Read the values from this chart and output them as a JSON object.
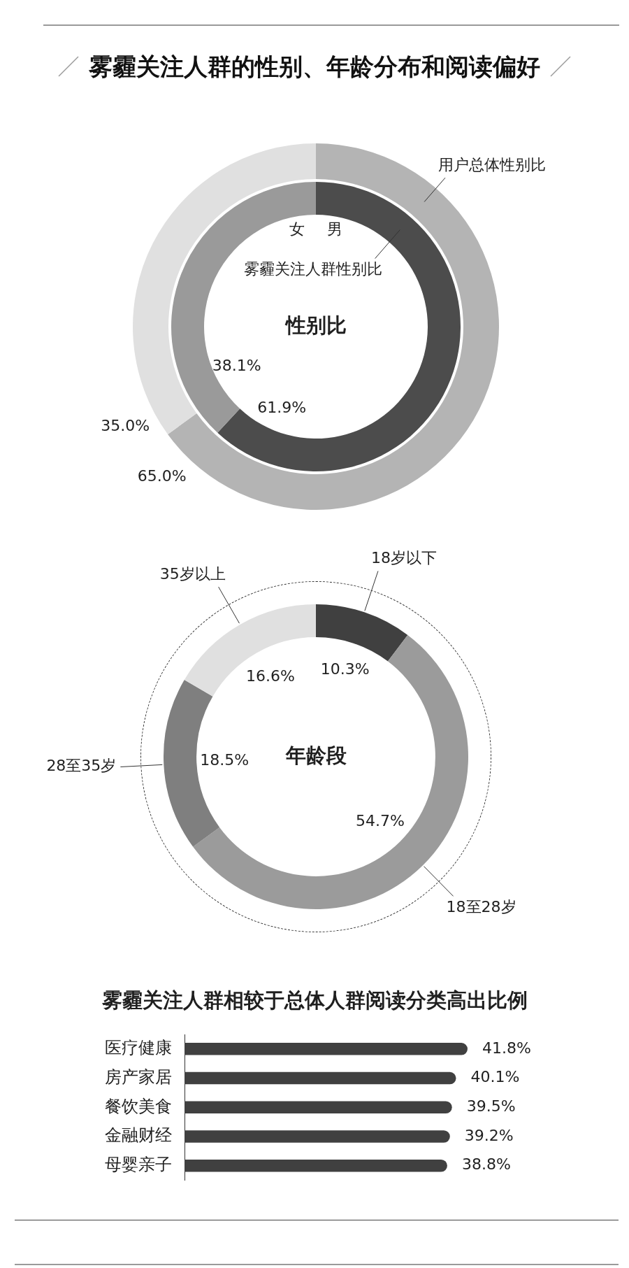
{
  "chart_data": [
    {
      "type": "other",
      "title": "雾霾关注人群的性别、年龄分布和阅读偏好"
    },
    {
      "type": "donut",
      "title": "性别比",
      "categories": [
        "男",
        "女"
      ],
      "series": [
        {
          "name": "用户总体性别比",
          "colors": [
            "#b4b4b4",
            "#e0e0e0"
          ],
          "values": [
            65.0,
            35.0
          ],
          "value_labels": [
            "65.0%",
            "35.0%"
          ]
        },
        {
          "name": "雾霾关注人群性别比",
          "colors": [
            "#4c4c4c",
            "#9a9a9a"
          ],
          "values": [
            61.9,
            38.1
          ],
          "value_labels": [
            "61.9%",
            "38.1%"
          ]
        }
      ]
    },
    {
      "type": "donut",
      "title": "年龄段",
      "categories": [
        "18岁以下",
        "18至28岁",
        "28至35岁",
        "35岁以上"
      ],
      "values": [
        10.3,
        54.7,
        18.5,
        16.6
      ],
      "colors": [
        "#404040",
        "#9b9b9b",
        "#7f7f7f",
        "#e0e0e0"
      ],
      "value_labels": [
        "10.3%",
        "54.7%",
        "18.5%",
        "16.6%"
      ]
    },
    {
      "type": "bar",
      "orientation": "horizontal",
      "title": "雾霾关注人群相较于总体人群阅读分类高出比例",
      "categories": [
        "医疗健康",
        "房产家居",
        "餐饮美食",
        "金融财经",
        "母婴亲子"
      ],
      "values": [
        41.8,
        40.1,
        39.5,
        39.2,
        38.8
      ],
      "color": "#404040",
      "value_labels": [
        "41.8%",
        "40.1%",
        "39.5%",
        "39.2%",
        "38.8%"
      ],
      "tick_labels": "y"
    }
  ]
}
